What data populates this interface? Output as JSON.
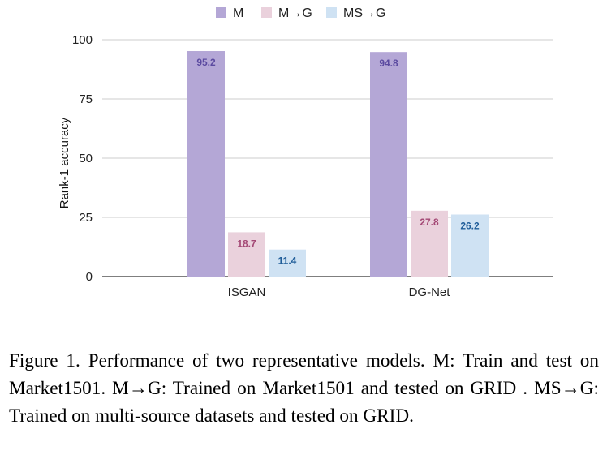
{
  "chart_data": {
    "type": "bar",
    "categories": [
      "ISGAN",
      "DG-Net"
    ],
    "series": [
      {
        "name": "M",
        "values": [
          95.2,
          94.8
        ],
        "color": "#b4a7d6",
        "label_color": "#5b4aa0"
      },
      {
        "name": "M→G",
        "values": [
          18.7,
          27.8
        ],
        "color": "#ead1dc",
        "label_color": "#a34774"
      },
      {
        "name": "MS→G",
        "values": [
          11.4,
          26.2
        ],
        "color": "#cfe2f3",
        "label_color": "#1f5d99"
      }
    ],
    "xlabel": "",
    "ylabel": "Rank-1 accuracy",
    "ylim": [
      0,
      100
    ],
    "yticks": [
      0,
      25,
      50,
      75,
      100
    ],
    "grid": true,
    "legend": "top-center"
  },
  "caption": "Figure 1. Performance of two representative models. M: Train and test on Market1501. M→G: Trained on Market1501 and tested on GRID . MS→G: Trained on multi-source datasets and tested on GRID."
}
